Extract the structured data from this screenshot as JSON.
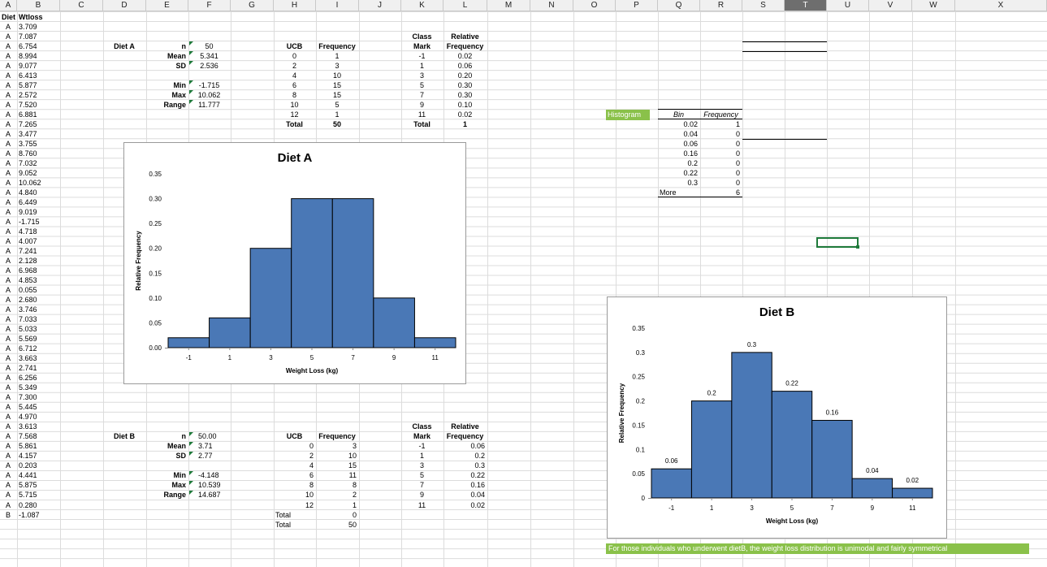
{
  "columns": [
    "A",
    "B",
    "C",
    "D",
    "E",
    "F",
    "G",
    "H",
    "I",
    "J",
    "K",
    "L",
    "M",
    "N",
    "O",
    "P",
    "Q",
    "R",
    "S",
    "T",
    "U",
    "V",
    "W",
    "X"
  ],
  "selected_column": "T",
  "data_headers": {
    "diet": "Diet",
    "wtloss": "Wtloss"
  },
  "data_rows": [
    [
      "A",
      "3.709"
    ],
    [
      "A",
      "7.087"
    ],
    [
      "A",
      "6.754"
    ],
    [
      "A",
      "8.994"
    ],
    [
      "A",
      "9.077"
    ],
    [
      "A",
      "6.413"
    ],
    [
      "A",
      "5.877"
    ],
    [
      "A",
      "2.572"
    ],
    [
      "A",
      "7.520"
    ],
    [
      "A",
      "6.881"
    ],
    [
      "A",
      "7.265"
    ],
    [
      "A",
      "3.477"
    ],
    [
      "A",
      "3.755"
    ],
    [
      "A",
      "8.760"
    ],
    [
      "A",
      "7.032"
    ],
    [
      "A",
      "9.052"
    ],
    [
      "A",
      "10.062"
    ],
    [
      "A",
      "4.840"
    ],
    [
      "A",
      "6.449"
    ],
    [
      "A",
      "9.019"
    ],
    [
      "A",
      "-1.715"
    ],
    [
      "A",
      "4.718"
    ],
    [
      "A",
      "4.007"
    ],
    [
      "A",
      "7.241"
    ],
    [
      "A",
      "2.128"
    ],
    [
      "A",
      "6.968"
    ],
    [
      "A",
      "4.853"
    ],
    [
      "A",
      "0.055"
    ],
    [
      "A",
      "2.680"
    ],
    [
      "A",
      "3.746"
    ],
    [
      "A",
      "7.033"
    ],
    [
      "A",
      "5.033"
    ],
    [
      "A",
      "5.569"
    ],
    [
      "A",
      "6.712"
    ],
    [
      "A",
      "3.663"
    ],
    [
      "A",
      "2.741"
    ],
    [
      "A",
      "6.256"
    ],
    [
      "A",
      "5.349"
    ],
    [
      "A",
      "7.300"
    ],
    [
      "A",
      "5.445"
    ],
    [
      "A",
      "4.970"
    ],
    [
      "A",
      "3.613"
    ],
    [
      "A",
      "7.568"
    ],
    [
      "A",
      "5.861"
    ],
    [
      "A",
      "4.157"
    ],
    [
      "A",
      "0.203"
    ],
    [
      "A",
      "4.441"
    ],
    [
      "A",
      "5.875"
    ],
    [
      "A",
      "5.715"
    ],
    [
      "A",
      "0.280"
    ],
    [
      "B",
      "-1.087"
    ]
  ],
  "diet_a": {
    "label": "Diet A",
    "stats": [
      {
        "k": "n",
        "v": "50"
      },
      {
        "k": "Mean",
        "v": "5.341"
      },
      {
        "k": "SD",
        "v": "2.536"
      },
      {
        "k": "",
        "v": ""
      },
      {
        "k": "Min",
        "v": "-1.715"
      },
      {
        "k": "Max",
        "v": "10.062"
      },
      {
        "k": "Range",
        "v": "11.777"
      }
    ],
    "ucb_header": "UCB",
    "freq_header": "Frequency",
    "ucb": [
      "0",
      "2",
      "4",
      "6",
      "8",
      "10",
      "12"
    ],
    "freq": [
      "1",
      "3",
      "10",
      "15",
      "15",
      "5",
      "1"
    ],
    "total_label": "Total",
    "total_value": "50",
    "class_header_1": "Class",
    "class_header_2": "Mark",
    "rel_header_1": "Relative",
    "rel_header_2": "Frequency",
    "class_mark": [
      "-1",
      "1",
      "3",
      "5",
      "7",
      "9",
      "11"
    ],
    "rel_freq": [
      "0.02",
      "0.06",
      "0.20",
      "0.30",
      "0.30",
      "0.10",
      "0.02"
    ],
    "rel_total_label": "Total",
    "rel_total_value": "1"
  },
  "diet_b": {
    "label": "Diet B",
    "stats": [
      {
        "k": "n",
        "v": "50.00"
      },
      {
        "k": "Mean",
        "v": "3.71"
      },
      {
        "k": "SD",
        "v": "2.77"
      },
      {
        "k": "",
        "v": ""
      },
      {
        "k": "Min",
        "v": "-4.148"
      },
      {
        "k": "Max",
        "v": "10.539"
      },
      {
        "k": "Range",
        "v": "14.687"
      }
    ],
    "ucb_header": "UCB",
    "freq_header": "Frequency",
    "ucb": [
      "0",
      "2",
      "4",
      "6",
      "8",
      "10",
      "12"
    ],
    "freq": [
      "3",
      "10",
      "15",
      "11",
      "8",
      "2",
      "1"
    ],
    "total_rows": [
      {
        "k": "Total",
        "v": "0"
      },
      {
        "k": "Total",
        "v": "50"
      }
    ],
    "class_header_1": "Class",
    "class_header_2": "Mark",
    "rel_header_1": "Relative",
    "rel_header_2": "Frequency",
    "class_mark": [
      "-1",
      "1",
      "3",
      "5",
      "7",
      "9",
      "11"
    ],
    "rel_freq": [
      "0.06",
      "0.2",
      "0.3",
      "0.22",
      "0.16",
      "0.04",
      "0.02"
    ]
  },
  "histogram_label": "Histogram",
  "bin_table": {
    "bin_header": "Bin",
    "freq_header": "Frequency",
    "rows": [
      [
        "0.02",
        "1"
      ],
      [
        "0.04",
        "0"
      ],
      [
        "0.06",
        "0"
      ],
      [
        "0.16",
        "0"
      ],
      [
        "0.2",
        "0"
      ],
      [
        "0.22",
        "0"
      ],
      [
        "0.3",
        "0"
      ],
      [
        "More",
        "6"
      ]
    ]
  },
  "note": "For those individuals who underwent dietB, the weight loss distribution is unimodal and fairly symmetrical",
  "colors": {
    "bar": "#4a78b6",
    "green": "#8ac14a",
    "header": "#f0f0f0"
  },
  "chart_data": [
    {
      "type": "bar",
      "title": "Diet A",
      "xlabel": "Weight Loss (kg)",
      "ylabel": "Relative Frequency",
      "categories": [
        "-1",
        "1",
        "3",
        "5",
        "7",
        "9",
        "11"
      ],
      "values": [
        0.02,
        0.06,
        0.2,
        0.3,
        0.3,
        0.1,
        0.02
      ],
      "ylim": [
        0,
        0.35
      ],
      "yticks": [
        "0.00",
        "0.05",
        "0.10",
        "0.15",
        "0.20",
        "0.25",
        "0.30",
        "0.35"
      ],
      "data_labels": false,
      "grid": false
    },
    {
      "type": "bar",
      "title": "Diet B",
      "xlabel": "Weight Loss (kg)",
      "ylabel": "Relative Frequency",
      "categories": [
        "-1",
        "1",
        "3",
        "5",
        "7",
        "9",
        "11"
      ],
      "values": [
        0.06,
        0.2,
        0.3,
        0.22,
        0.16,
        0.04,
        0.02
      ],
      "ylim": [
        0,
        0.35
      ],
      "yticks": [
        "0",
        "0.05",
        "0.1",
        "0.15",
        "0.2",
        "0.25",
        "0.3",
        "0.35"
      ],
      "data_labels": true,
      "grid": false
    }
  ]
}
